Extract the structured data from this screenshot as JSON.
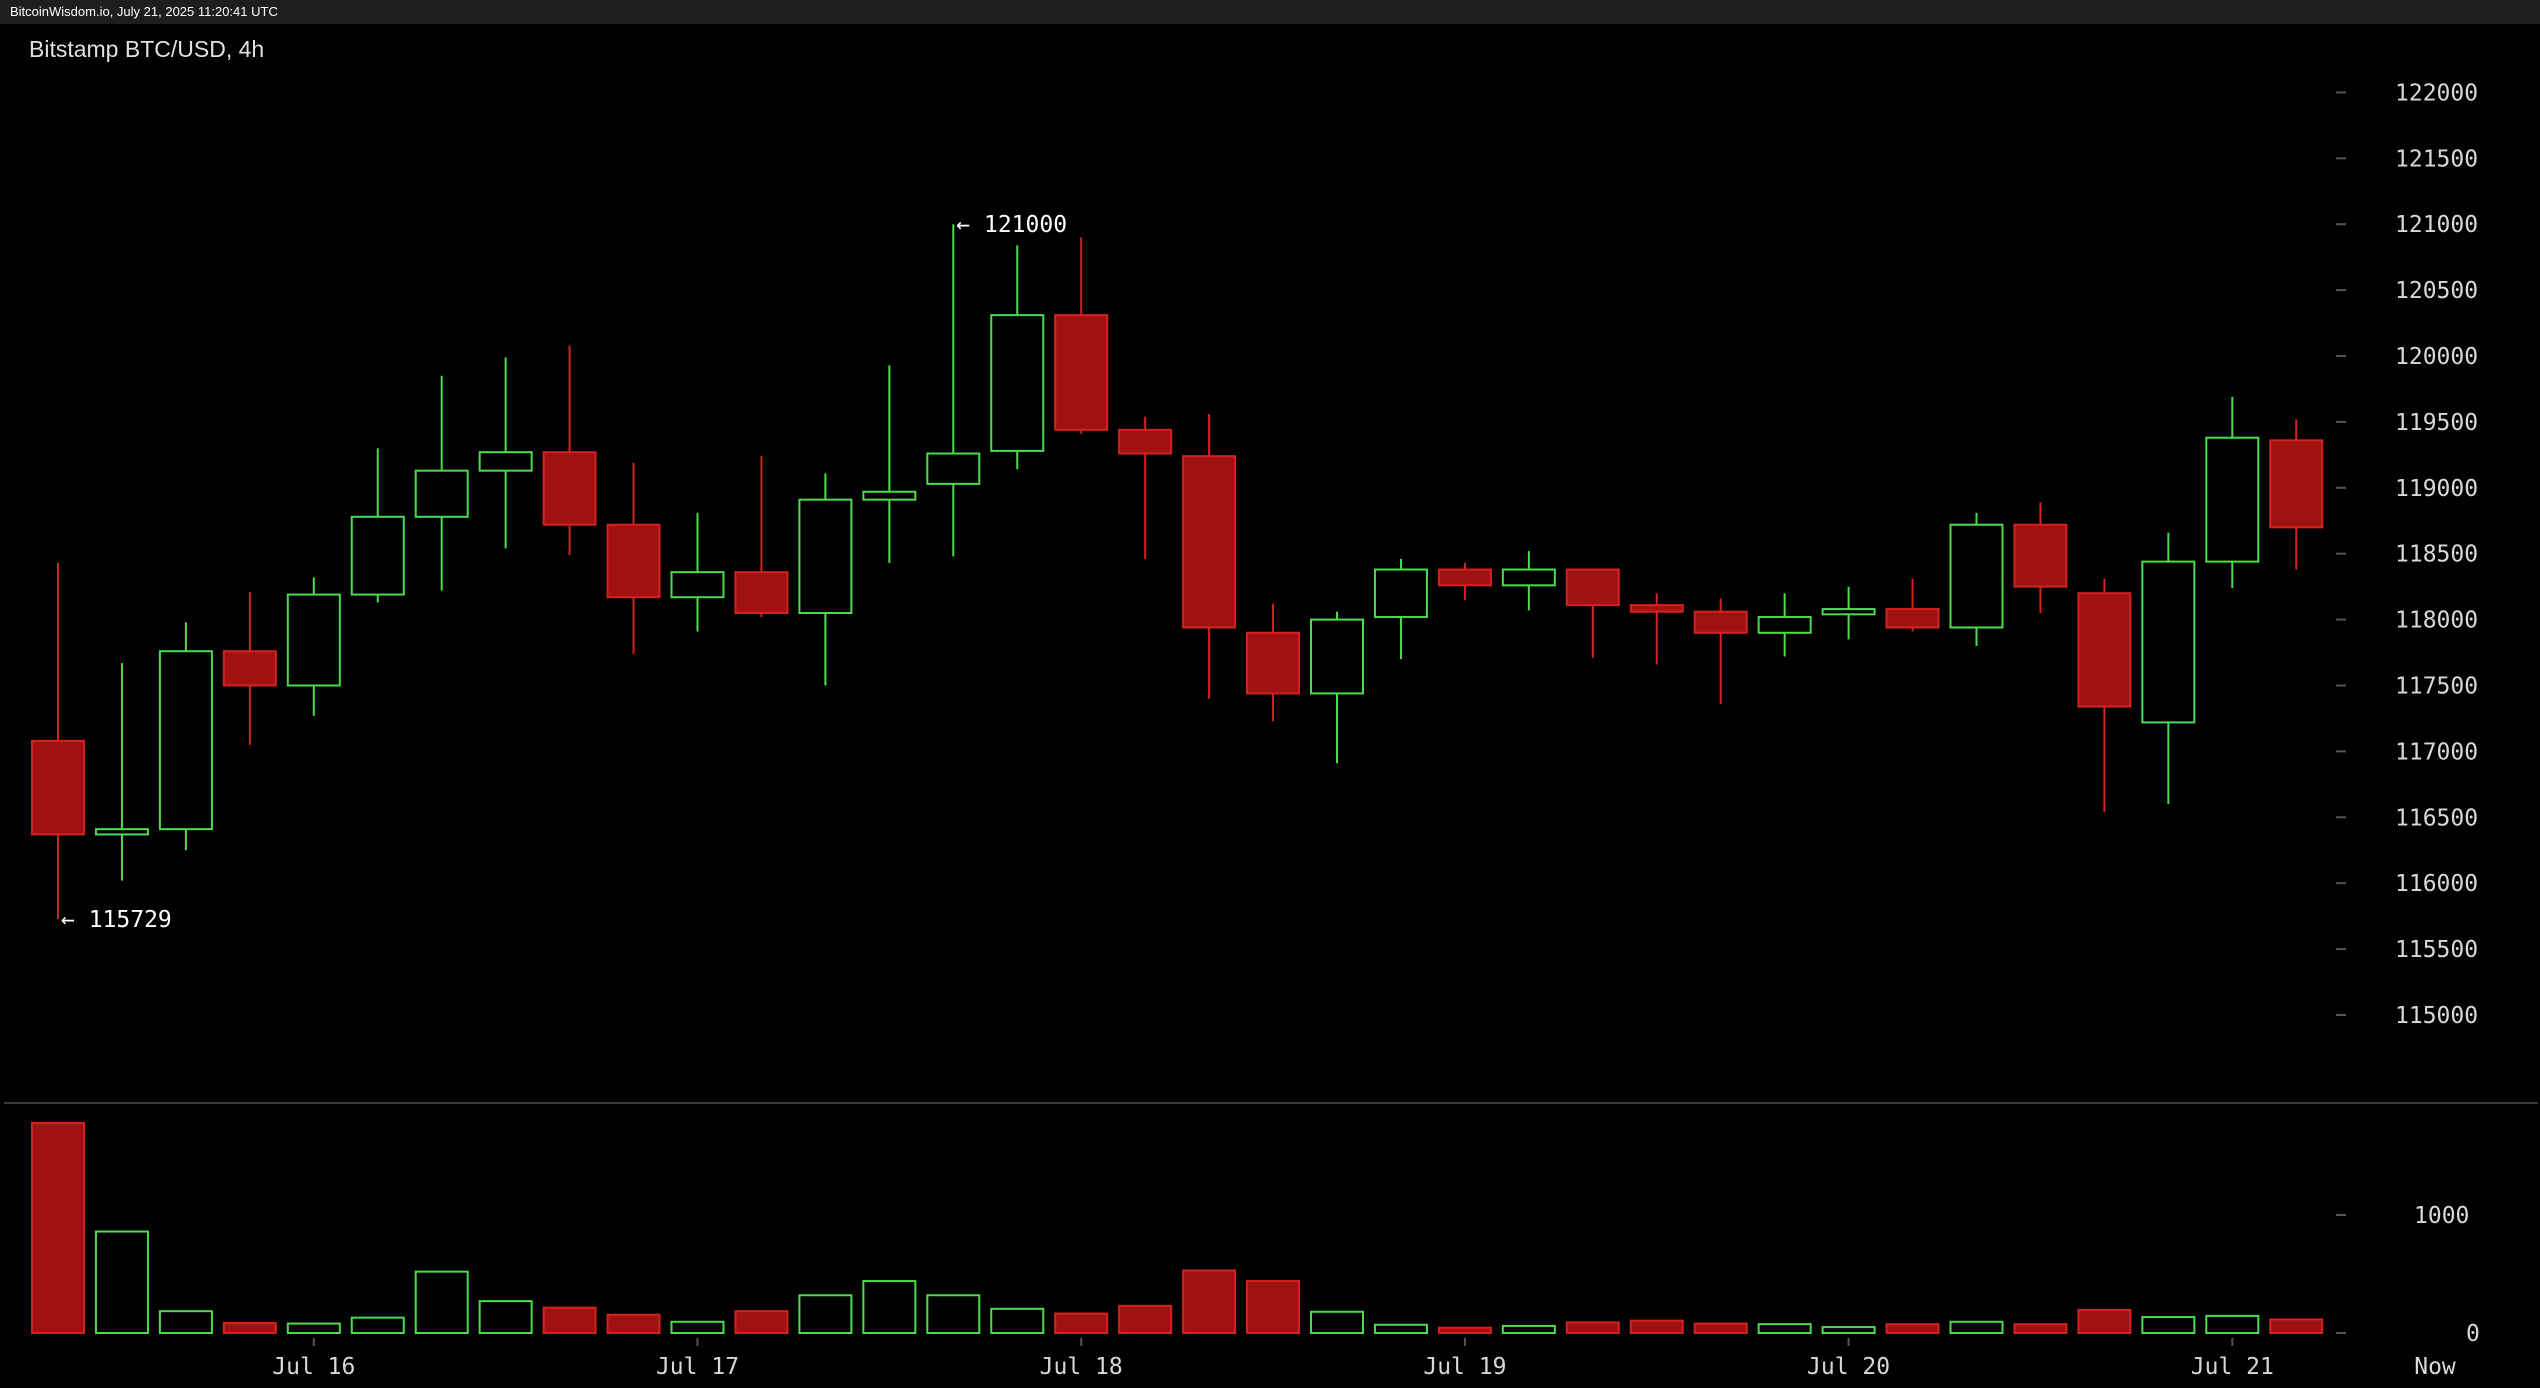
{
  "header": {
    "source_stamp": "BitcoinWisdom.io, July 21, 2025 11:20:41 UTC",
    "title": "Bitstamp BTC/USD, 4h"
  },
  "colors": {
    "up": "#4ddb4d",
    "down": "#a01212",
    "down_border": "#d42222",
    "background": "#000000",
    "divider": "#3a3a3a"
  },
  "chart_data": {
    "type": "candlestick",
    "title": "Bitstamp BTC/USD, 4h",
    "interval": "4h",
    "ylim": [
      114000,
      122500
    ],
    "y_ticks": [
      115000,
      115500,
      116000,
      116500,
      117000,
      117500,
      118000,
      118500,
      119000,
      119500,
      120000,
      120500,
      121000,
      121500,
      122000
    ],
    "volume_ticks": [
      0,
      1000
    ],
    "volume_max": 2000,
    "x_labels": [
      {
        "label": "Jul 16",
        "index": 4
      },
      {
        "label": "Jul 17",
        "index": 10
      },
      {
        "label": "Jul 18",
        "index": 16
      },
      {
        "label": "Jul 19",
        "index": 22
      },
      {
        "label": "Jul 20",
        "index": 28
      },
      {
        "label": "Jul 21",
        "index": 34
      },
      {
        "label": "Now",
        "index": 37
      }
    ],
    "annotations": [
      {
        "text": "← 121000",
        "index": 14,
        "price": 121000
      },
      {
        "text": "← 115729",
        "index": 0,
        "price": 115729
      }
    ],
    "candles": [
      {
        "open": 117080,
        "high": 118430,
        "low": 115729,
        "close": 116370,
        "volume": 1780
      },
      {
        "open": 116370,
        "high": 117670,
        "low": 116020,
        "close": 116410,
        "volume": 860
      },
      {
        "open": 116410,
        "high": 117980,
        "low": 116250,
        "close": 117760,
        "volume": 185
      },
      {
        "open": 117760,
        "high": 118210,
        "low": 117050,
        "close": 117500,
        "volume": 85
      },
      {
        "open": 117500,
        "high": 118320,
        "low": 117270,
        "close": 118190,
        "volume": 80
      },
      {
        "open": 118190,
        "high": 119300,
        "low": 118130,
        "close": 118780,
        "volume": 130
      },
      {
        "open": 118780,
        "high": 119850,
        "low": 118220,
        "close": 119130,
        "volume": 520
      },
      {
        "open": 119130,
        "high": 119990,
        "low": 118540,
        "close": 119270,
        "volume": 270
      },
      {
        "open": 119270,
        "high": 120080,
        "low": 118490,
        "close": 118720,
        "volume": 215
      },
      {
        "open": 118720,
        "high": 119190,
        "low": 117740,
        "close": 118170,
        "volume": 155
      },
      {
        "open": 118170,
        "high": 118810,
        "low": 117910,
        "close": 118360,
        "volume": 95
      },
      {
        "open": 118360,
        "high": 119240,
        "low": 118020,
        "close": 118050,
        "volume": 185
      },
      {
        "open": 118050,
        "high": 119110,
        "low": 117500,
        "close": 118910,
        "volume": 320
      },
      {
        "open": 118910,
        "high": 119930,
        "low": 118430,
        "close": 118970,
        "volume": 440
      },
      {
        "open": 119030,
        "high": 121000,
        "low": 118480,
        "close": 119260,
        "volume": 320
      },
      {
        "open": 119280,
        "high": 120840,
        "low": 119140,
        "close": 120310,
        "volume": 205
      },
      {
        "open": 120310,
        "high": 120900,
        "low": 119410,
        "close": 119440,
        "volume": 165
      },
      {
        "open": 119440,
        "high": 119540,
        "low": 118460,
        "close": 119260,
        "volume": 230
      },
      {
        "open": 119240,
        "high": 119560,
        "low": 117400,
        "close": 117940,
        "volume": 530
      },
      {
        "open": 117900,
        "high": 118120,
        "low": 117230,
        "close": 117440,
        "volume": 440
      },
      {
        "open": 117440,
        "high": 118060,
        "low": 116910,
        "close": 118000,
        "volume": 180
      },
      {
        "open": 118020,
        "high": 118460,
        "low": 117700,
        "close": 118380,
        "volume": 70
      },
      {
        "open": 118380,
        "high": 118430,
        "low": 118150,
        "close": 118260,
        "volume": 45
      },
      {
        "open": 118260,
        "high": 118520,
        "low": 118070,
        "close": 118380,
        "volume": 60
      },
      {
        "open": 118380,
        "high": 118380,
        "low": 117710,
        "close": 118110,
        "volume": 90
      },
      {
        "open": 118110,
        "high": 118200,
        "low": 117660,
        "close": 118060,
        "volume": 105
      },
      {
        "open": 118060,
        "high": 118160,
        "low": 117360,
        "close": 117900,
        "volume": 80
      },
      {
        "open": 117900,
        "high": 118200,
        "low": 117720,
        "close": 118020,
        "volume": 75
      },
      {
        "open": 118040,
        "high": 118250,
        "low": 117850,
        "close": 118080,
        "volume": 50
      },
      {
        "open": 118080,
        "high": 118310,
        "low": 117910,
        "close": 117940,
        "volume": 75
      },
      {
        "open": 117940,
        "high": 118810,
        "low": 117800,
        "close": 118720,
        "volume": 95
      },
      {
        "open": 118720,
        "high": 118890,
        "low": 118050,
        "close": 118250,
        "volume": 75
      },
      {
        "open": 118200,
        "high": 118310,
        "low": 116540,
        "close": 117340,
        "volume": 195
      },
      {
        "open": 117220,
        "high": 118660,
        "low": 116600,
        "close": 118440,
        "volume": 135
      },
      {
        "open": 118440,
        "high": 119690,
        "low": 118240,
        "close": 119380,
        "volume": 145
      },
      {
        "open": 119360,
        "high": 119520,
        "low": 118380,
        "close": 118700,
        "volume": 115
      }
    ]
  }
}
